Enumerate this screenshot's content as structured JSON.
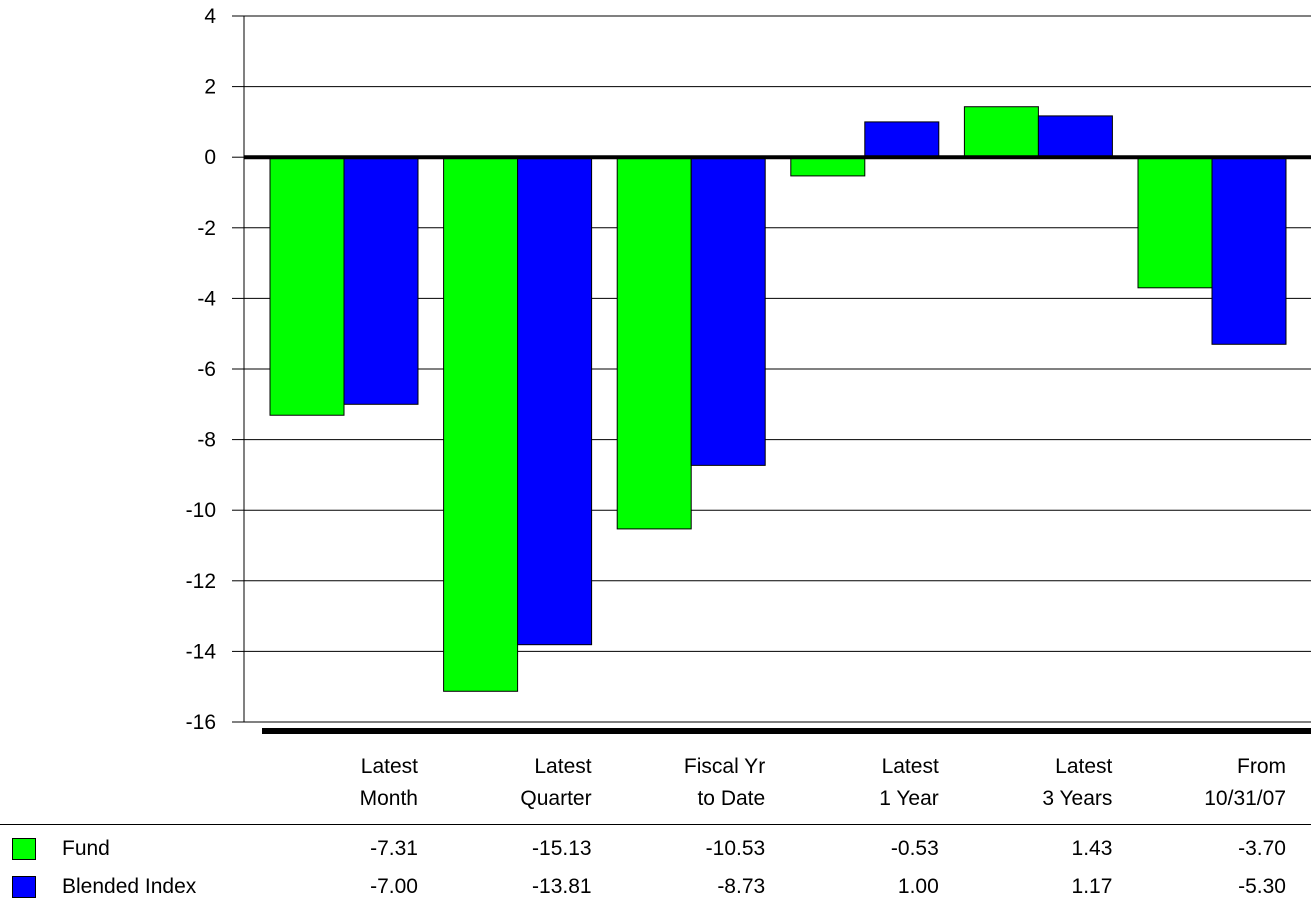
{
  "chart_data": {
    "type": "bar",
    "categories": [
      [
        "Latest",
        "Month"
      ],
      [
        "Latest",
        "Quarter"
      ],
      [
        "Fiscal Yr",
        "to Date"
      ],
      [
        "Latest",
        "1 Year"
      ],
      [
        "Latest",
        "3 Years"
      ],
      [
        "From",
        "10/31/07"
      ]
    ],
    "series": [
      {
        "name": "Fund",
        "color": "#00ff00",
        "values": [
          -7.31,
          -15.13,
          -10.53,
          -0.53,
          1.43,
          -3.7
        ],
        "labels": [
          "-7.31",
          "-15.13",
          "-10.53",
          "-0.53",
          "1.43",
          "-3.70"
        ]
      },
      {
        "name": "Blended Index",
        "color": "#0000ff",
        "values": [
          -7.0,
          -13.81,
          -8.73,
          1.0,
          1.17,
          -5.3
        ],
        "labels": [
          "-7.00",
          "-13.81",
          "-8.73",
          "1.00",
          "1.17",
          "-5.30"
        ]
      }
    ],
    "ylim": [
      -16,
      4
    ],
    "yticks": [
      "4",
      "2",
      "0",
      "-2",
      "-4",
      "-6",
      "-8",
      "-10",
      "-12",
      "-14",
      "-16"
    ],
    "grid": true,
    "legend": "table-below"
  }
}
